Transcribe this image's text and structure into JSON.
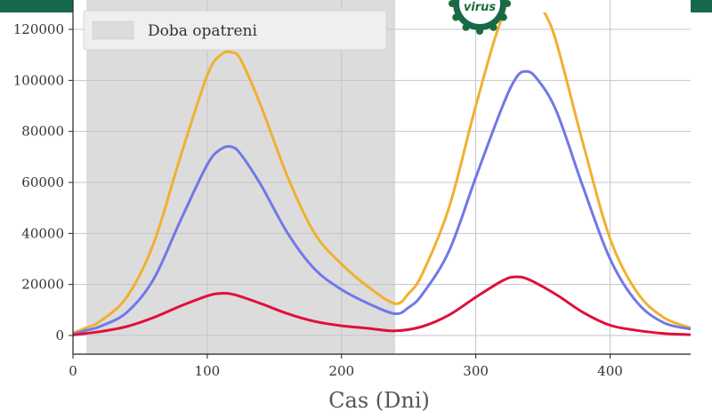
{
  "header": {
    "bar_color": "#16694a"
  },
  "logo": {
    "text": "virus",
    "icon": "virus-logo-icon",
    "color": "#1b6b3a"
  },
  "chart_data": {
    "type": "line",
    "title": "",
    "xlabel": "Cas (Dni)",
    "ylabel": "",
    "xlim": [
      0,
      460
    ],
    "ylim": [
      -7000,
      126000
    ],
    "xticks": [
      0,
      100,
      200,
      300,
      400
    ],
    "yticks": [
      0,
      20000,
      40000,
      60000,
      80000,
      100000,
      120000
    ],
    "grid": true,
    "legend": {
      "placement": "top-left",
      "entries": [
        {
          "label": "Doba opatreni",
          "color": "#dcdcdc"
        }
      ]
    },
    "shaded_region": {
      "label": "Doba opatreni",
      "x_start": 10,
      "x_end": 240,
      "color": "#dcdcdc"
    },
    "series": [
      {
        "color": "#f0b030",
        "x": [
          0,
          10,
          20,
          40,
          60,
          80,
          100,
          110,
          118,
          125,
          140,
          160,
          180,
          200,
          220,
          240,
          250,
          260,
          280,
          300,
          320,
          340,
          350,
          360,
          380,
          400,
          420,
          440,
          460
        ],
        "y": [
          1000,
          3000,
          5500,
          15000,
          36000,
          70000,
          102000,
          110000,
          111000,
          108000,
          90000,
          62000,
          40000,
          28000,
          19000,
          12500,
          16500,
          24000,
          50000,
          90000,
          125000,
          140000,
          128000,
          115000,
          75000,
          38000,
          17000,
          7000,
          3000
        ]
      },
      {
        "color": "#7078e8",
        "x": [
          0,
          10,
          20,
          40,
          60,
          80,
          100,
          110,
          118,
          125,
          140,
          160,
          180,
          200,
          220,
          240,
          250,
          260,
          280,
          300,
          320,
          330,
          337,
          345,
          360,
          380,
          400,
          420,
          440,
          460
        ],
        "y": [
          500,
          2000,
          3500,
          9000,
          22000,
          45000,
          67000,
          73000,
          74000,
          71000,
          59000,
          40000,
          26000,
          18000,
          12500,
          8500,
          11000,
          16000,
          33000,
          62000,
          90000,
          101000,
          103500,
          101000,
          88000,
          58000,
          30000,
          13000,
          5000,
          2500
        ]
      },
      {
        "color": "#e0103a",
        "x": [
          0,
          20,
          40,
          60,
          80,
          100,
          110,
          120,
          140,
          160,
          180,
          200,
          220,
          240,
          260,
          280,
          300,
          320,
          330,
          340,
          360,
          380,
          400,
          420,
          440,
          460
        ],
        "y": [
          200,
          1500,
          3500,
          7000,
          11500,
          15500,
          16500,
          16000,
          12500,
          8500,
          5500,
          3800,
          2800,
          1800,
          3500,
          8000,
          15000,
          21500,
          23000,
          21800,
          16000,
          9000,
          4000,
          2000,
          800,
          300
        ]
      }
    ]
  }
}
